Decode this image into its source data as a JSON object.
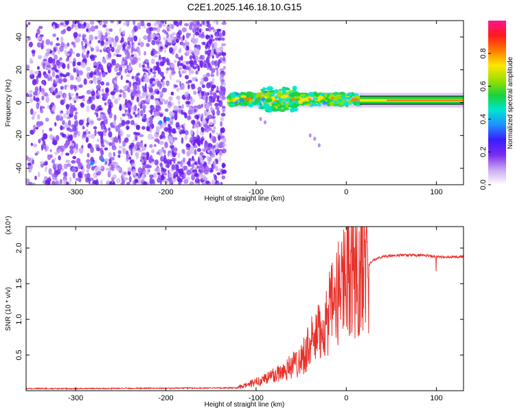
{
  "title": "C2E1.2025.146.18.10.G15",
  "chart_data": [
    {
      "type": "heatmap",
      "xlabel": "Height of straight line (km)",
      "ylabel": "Frequency (Hz)",
      "xlim": [
        -355,
        130
      ],
      "ylim": [
        -50,
        50
      ],
      "xticks": [
        -300,
        -200,
        -100,
        0,
        100
      ],
      "yticks": [
        -40,
        -20,
        0,
        20,
        40
      ],
      "colorbar": {
        "label": "Normalized spectral amplitude",
        "range": [
          0.0,
          1.0
        ],
        "ticks": [
          0.0,
          0.2,
          0.4,
          0.6,
          0.8
        ],
        "tick_labels": [
          "0.0",
          "0.2",
          "0.4",
          "0.6",
          "0.8"
        ],
        "colors": [
          "#ffffff",
          "#c9a9f2",
          "#7b2cf0",
          "#3a1cff",
          "#1e90ff",
          "#00e5d0",
          "#19d23a",
          "#9be000",
          "#ffe600",
          "#ff7a00",
          "#ff1a1a",
          "#ff1493"
        ]
      },
      "regions": [
        {
          "x": [
            -355,
            -135
          ],
          "freq": [
            -50,
            50
          ],
          "amplitude": [
            0.05,
            0.25
          ],
          "description_values": "scattered low amplitude noise"
        },
        {
          "x": [
            -130,
            15
          ],
          "freq": [
            -5,
            10
          ],
          "amplitude": [
            0.4,
            0.9
          ]
        },
        {
          "x": [
            15,
            130
          ],
          "freq": [
            -1,
            4
          ],
          "amplitude": [
            0.5,
            0.75
          ]
        }
      ]
    },
    {
      "type": "line",
      "xlabel": "Height of straight line (km)",
      "ylabel": "SNR (10 * v/v)",
      "y_multiplier": "(x10⁴)",
      "xlim": [
        -355,
        130
      ],
      "ylim": [
        0,
        2.3
      ],
      "xticks": [
        -300,
        -200,
        -100,
        0,
        100
      ],
      "yticks": [
        0.5,
        1.0,
        1.5,
        2.0
      ],
      "ytick_labels": [
        "0.5",
        "1.0",
        "1.5",
        "2.0"
      ],
      "color": "#e8302a",
      "series": [
        {
          "x": [
            -355,
            -300,
            -200,
            -120,
            -100,
            -80,
            -60,
            -50,
            -40,
            -30,
            -20,
            -10,
            -5,
            0,
            10,
            20,
            30,
            40,
            60,
            80,
            90,
            100,
            110,
            130
          ],
          "values": [
            0.03,
            0.03,
            0.035,
            0.04,
            0.12,
            0.22,
            0.35,
            0.45,
            0.65,
            0.8,
            1.05,
            1.3,
            1.6,
            1.75,
            1.5,
            1.7,
            1.83,
            1.88,
            1.9,
            1.9,
            1.89,
            1.88,
            1.87,
            1.88
          ]
        }
      ]
    }
  ]
}
